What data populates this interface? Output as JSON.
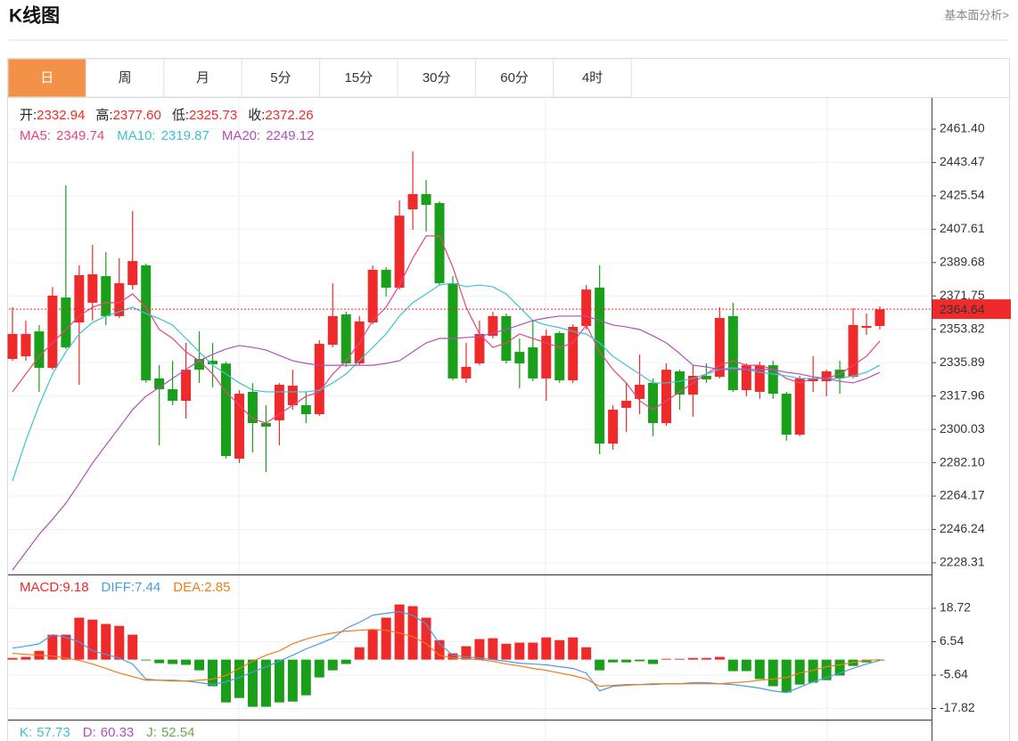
{
  "header": {
    "title": "K线图",
    "link": "基本面分析>"
  },
  "tabs": [
    "日",
    "周",
    "月",
    "5分",
    "15分",
    "30分",
    "60分",
    "4时"
  ],
  "active_tab": 0,
  "chart_data": [
    {
      "type": "candlestick",
      "info": [
        {
          "name": "开:",
          "value": "2332.94"
        },
        {
          "name": "高:",
          "value": "2377.60"
        },
        {
          "name": "低:",
          "value": "2325.73"
        },
        {
          "name": "收:",
          "value": "2372.26"
        }
      ],
      "up_color": "#ee2a2a",
      "down_color": "#1a9f1a",
      "open": [
        2337.9,
        2339.3,
        2352.7,
        2333.1,
        2370.9,
        2357.5,
        2368.1,
        2382.4,
        2360.9,
        2377.6,
        2388.2,
        2327.4,
        2321.6,
        2315.4,
        2337.9,
        2336.9,
        2335.4,
        2284.3,
        2320.2,
        2303.4,
        2304.9,
        2313.0,
        2313.0,
        2308.2,
        2345.5,
        2361.8,
        2335.5,
        2357.5,
        2385.8,
        2376.2,
        2418.3,
        2426.5,
        2421.7,
        2378.6,
        2327.4,
        2335.5,
        2350.3,
        2360.9,
        2341.7,
        2344.1,
        2327.4,
        2351.8,
        2326.4,
        2355.6,
        2376.2,
        2292.4,
        2311.6,
        2316.4,
        2325.0,
        2303.4,
        2331.2,
        2318.7,
        2328.8,
        2328.3,
        2360.9,
        2321.1,
        2320.2,
        2334.5,
        2319.2,
        2297.2,
        2325.9,
        2325.9,
        2332.1,
        2328.3,
        2354.6,
        2355.6
      ],
      "high": [
        2365.7,
        2358.5,
        2356.1,
        2376.6,
        2431.2,
        2388.2,
        2399.2,
        2395.3,
        2392.0,
        2417.4,
        2389.1,
        2334.6,
        2336.9,
        2346.5,
        2352.7,
        2346.5,
        2336.4,
        2321.1,
        2324.9,
        2313.0,
        2324.9,
        2332.1,
        2320.2,
        2347.9,
        2378.6,
        2363.3,
        2360.9,
        2388.2,
        2387.2,
        2423.1,
        2449.4,
        2434.1,
        2422.6,
        2382.4,
        2346.5,
        2358.5,
        2363.3,
        2362.3,
        2348.9,
        2358.5,
        2353.7,
        2352.7,
        2356.6,
        2377.6,
        2388.2,
        2313.0,
        2325.0,
        2340.3,
        2327.4,
        2335.5,
        2332.1,
        2334.5,
        2335.5,
        2365.7,
        2368.1,
        2335.5,
        2336.4,
        2336.9,
        2320.2,
        2328.8,
        2339.3,
        2332.1,
        2336.9,
        2365.2,
        2362.3,
        2366.2
      ],
      "low": [
        2336.9,
        2336.9,
        2320.2,
        2332.1,
        2343.2,
        2324.0,
        2358.5,
        2356.1,
        2359.9,
        2375.2,
        2325.0,
        2291.5,
        2313.0,
        2305.8,
        2325.0,
        2322.6,
        2284.3,
        2281.9,
        2287.6,
        2277.1,
        2291.5,
        2310.6,
        2303.4,
        2307.3,
        2344.1,
        2333.6,
        2334.5,
        2356.6,
        2371.4,
        2375.2,
        2407.3,
        2406.3,
        2377.6,
        2326.4,
        2325.0,
        2334.5,
        2348.9,
        2335.5,
        2322.1,
        2325.9,
        2315.4,
        2325.0,
        2325.0,
        2353.7,
        2286.7,
        2289.1,
        2298.6,
        2308.2,
        2296.3,
        2302.0,
        2310.6,
        2306.8,
        2325.0,
        2327.4,
        2320.2,
        2317.8,
        2316.4,
        2316.4,
        2293.9,
        2296.3,
        2320.2,
        2317.8,
        2319.2,
        2327.4,
        2350.8,
        2353.7
      ],
      "close": [
        2351.3,
        2351.3,
        2333.1,
        2371.9,
        2344.1,
        2382.9,
        2383.4,
        2360.9,
        2378.6,
        2390.5,
        2326.4,
        2321.6,
        2315.4,
        2332.1,
        2332.1,
        2335.0,
        2285.7,
        2319.2,
        2303.4,
        2301.5,
        2324.0,
        2323.5,
        2308.2,
        2346.0,
        2360.9,
        2335.5,
        2358.0,
        2385.8,
        2376.2,
        2414.9,
        2426.5,
        2420.7,
        2378.6,
        2327.4,
        2333.6,
        2351.3,
        2360.9,
        2336.9,
        2335.5,
        2327.4,
        2350.3,
        2326.4,
        2355.1,
        2375.2,
        2292.4,
        2310.6,
        2315.4,
        2324.0,
        2303.4,
        2332.1,
        2318.7,
        2328.8,
        2326.9,
        2359.9,
        2321.1,
        2334.5,
        2334.5,
        2319.2,
        2297.2,
        2327.4,
        2327.4,
        2331.2,
        2327.4,
        2356.1,
        2355.6,
        2364.6
      ],
      "series": [
        {
          "name": "MA5:",
          "label_value": "2349.74",
          "color": "#e5457f",
          "values": [
            2320.2,
            2329.8,
            2339.3,
            2346.5,
            2353.7,
            2360.9,
            2365.7,
            2368.1,
            2368.1,
            2372.8,
            2365.7,
            2353.7,
            2348.9,
            2341.7,
            2336.9,
            2329.8,
            2320.2,
            2313.0,
            2305.8,
            2303.4,
            2308.2,
            2313.0,
            2317.8,
            2320.2,
            2329.8,
            2336.9,
            2346.5,
            2358.5,
            2365.7,
            2377.6,
            2392.0,
            2404.0,
            2404.0,
            2387.2,
            2365.7,
            2351.3,
            2344.1,
            2346.5,
            2351.3,
            2348.9,
            2346.5,
            2344.1,
            2346.5,
            2356.1,
            2341.7,
            2332.2,
            2325.0,
            2315.4,
            2310.6,
            2315.4,
            2320.2,
            2325.0,
            2329.8,
            2334.5,
            2336.9,
            2334.5,
            2334.5,
            2332.2,
            2327.4,
            2325.0,
            2327.4,
            2327.4,
            2329.8,
            2334.5,
            2339.3,
            2347.5
          ]
        },
        {
          "name": "MA10:",
          "label_value": "2319.87",
          "color": "#3ec1d3",
          "values": [
            2272.3,
            2293.9,
            2313.0,
            2329.8,
            2341.7,
            2351.3,
            2357.5,
            2360.9,
            2363.3,
            2365.7,
            2362.3,
            2359.5,
            2356.1,
            2348.9,
            2341.7,
            2334.5,
            2329.8,
            2325.0,
            2321.1,
            2320.2,
            2320.2,
            2320.2,
            2320.2,
            2321.1,
            2325.0,
            2329.8,
            2336.9,
            2344.1,
            2351.3,
            2360.9,
            2368.1,
            2372.8,
            2377.6,
            2378.6,
            2376.7,
            2377.6,
            2376.7,
            2372.8,
            2365.7,
            2358.5,
            2356.1,
            2354.7,
            2352.7,
            2351.3,
            2346.5,
            2339.3,
            2334.5,
            2329.8,
            2325.0,
            2325.0,
            2325.9,
            2327.4,
            2329.8,
            2332.2,
            2333.1,
            2332.2,
            2330.7,
            2329.8,
            2328.8,
            2327.4,
            2327.4,
            2327.4,
            2327.4,
            2328.8,
            2330.7,
            2334.5
          ]
        },
        {
          "name": "MA20:",
          "label_value": "2249.12",
          "color": "#b150b8",
          "values": [
            2224.4,
            2234.0,
            2243.6,
            2251.7,
            2260.3,
            2270.9,
            2281.9,
            2291.5,
            2301.0,
            2310.6,
            2317.8,
            2322.6,
            2327.4,
            2332.2,
            2336.9,
            2340.3,
            2343.2,
            2345.1,
            2344.1,
            2342.7,
            2339.8,
            2336.9,
            2335.5,
            2334.5,
            2334.5,
            2334.5,
            2334.5,
            2334.5,
            2335.5,
            2336.9,
            2341.7,
            2346.5,
            2348.9,
            2348.9,
            2349.4,
            2349.9,
            2351.8,
            2353.7,
            2356.1,
            2358.5,
            2359.9,
            2360.9,
            2360.9,
            2360.9,
            2358.5,
            2356.1,
            2355.1,
            2353.7,
            2350.3,
            2346.5,
            2340.8,
            2334.5,
            2333.6,
            2332.2,
            2332.2,
            2332.2,
            2332.2,
            2332.2,
            2330.7,
            2329.8,
            2328.3,
            2327.4,
            2325.9,
            2325.0,
            2327.4,
            2330.7
          ]
        }
      ],
      "ylim": [
        2222.05,
        2478.15
      ],
      "yticks": [
        {
          "value": 2461.4,
          "label": "2461.40"
        },
        2443.47,
        2425.54,
        2407.61,
        2389.68,
        2371.75,
        2353.82,
        2335.89,
        2317.96,
        2300.03,
        {
          "value": 2282.1,
          "label": "2282.10"
        },
        2264.17,
        2246.24,
        2228.31
      ],
      "last_price": 2364.64,
      "last_price_color": "#ee2a2a",
      "grid": true
    },
    {
      "type": "macd",
      "name": "MACD:",
      "label_value": "9.18",
      "pos_color": "#ee2a2a",
      "neg_color": "#1a9f1a",
      "values": [
        0.6,
        1.0,
        3.2,
        9.1,
        9.1,
        15.3,
        14.6,
        13.0,
        12.3,
        9.1,
        -0.3,
        -1.3,
        -1.6,
        -1.9,
        -3.9,
        -9.7,
        -15.6,
        -14.0,
        -17.2,
        -17.2,
        -15.6,
        -15.3,
        -13.0,
        -6.5,
        -3.9,
        -1.6,
        4.5,
        11.0,
        15.3,
        20.1,
        19.5,
        15.3,
        7.1,
        2.3,
        4.9,
        7.5,
        7.8,
        5.8,
        6.2,
        6.2,
        8.1,
        7.1,
        8.1,
        4.5,
        -3.9,
        -1.0,
        -1.0,
        -0.6,
        -1.6,
        0.3,
        0.3,
        0.6,
        0.6,
        1.0,
        -4.2,
        -4.2,
        -7.1,
        -9.7,
        -12.0,
        -9.1,
        -8.4,
        -7.5,
        -5.8,
        -2.3,
        -1.0,
        -0.3
      ],
      "series": [
        {
          "name": "DIFF:",
          "label_value": "7.44",
          "color": "#4b9be0",
          "values": [
            4.2,
            4.9,
            5.8,
            9.1,
            8.1,
            6.5,
            3.2,
            1.9,
            0.6,
            -1.6,
            -7.1,
            -7.5,
            -7.5,
            -7.8,
            -8.4,
            -9.1,
            -8.1,
            -6.5,
            -4.5,
            -2.6,
            -0.6,
            1.6,
            3.9,
            5.8,
            7.8,
            11.4,
            13.6,
            16.2,
            16.9,
            17.5,
            16.2,
            13.0,
            5.8,
            1.6,
            1.0,
            0.6,
            0,
            -0.6,
            -1.3,
            -1.6,
            -1.9,
            -2.6,
            -3.2,
            -4.9,
            -11.4,
            -9.7,
            -9.4,
            -9.1,
            -9.1,
            -8.8,
            -8.8,
            -8.4,
            -8.4,
            -8.8,
            -9.1,
            -9.7,
            -10.4,
            -11.4,
            -12.0,
            -10.1,
            -8.1,
            -6.5,
            -4.9,
            -3.2,
            -1.6,
            -0.3
          ]
        },
        {
          "name": "DEA:",
          "label_value": "2.85",
          "color": "#f07c1a",
          "values": [
            2.3,
            1.9,
            1.6,
            1.3,
            0.6,
            -0.3,
            -1.6,
            -3.2,
            -4.9,
            -6.2,
            -7.5,
            -7.5,
            -7.8,
            -7.8,
            -7.5,
            -7.1,
            -5.8,
            -3.2,
            -0.6,
            1.6,
            3.2,
            5.8,
            7.5,
            8.8,
            9.7,
            10.4,
            10.7,
            11.0,
            10.7,
            9.7,
            8.4,
            5.8,
            1.6,
            0.6,
            0.3,
            0,
            -0.6,
            -1.6,
            -2.3,
            -3.2,
            -3.9,
            -4.9,
            -5.8,
            -7.1,
            -9.7,
            -9.4,
            -9.1,
            -9.1,
            -8.8,
            -8.8,
            -8.8,
            -8.8,
            -8.8,
            -8.8,
            -8.4,
            -8.1,
            -7.5,
            -7.1,
            -6.5,
            -4.9,
            -3.9,
            -2.6,
            -1.9,
            -1.0,
            -0.3,
            0
          ]
        }
      ],
      "ylim": [
        -21.88,
        31.06
      ],
      "yticks": [
        18.72,
        6.54,
        -5.64,
        -17.82
      ]
    },
    {
      "type": "kdj",
      "series": [
        {
          "name": "K:",
          "label_value": "57.73",
          "color": "#3ec1d3"
        },
        {
          "name": "D:",
          "label_value": "60.33",
          "color": "#b150b8"
        },
        {
          "name": "J:",
          "label_value": "52.54",
          "color": "#6aa84f"
        }
      ]
    }
  ]
}
